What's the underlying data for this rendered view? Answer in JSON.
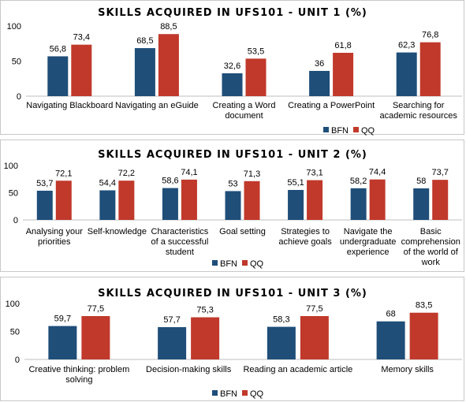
{
  "colors": {
    "bfn": "#1F4E79",
    "qq": "#C0392B",
    "axis": "#bfbfbf"
  },
  "chart_data": [
    {
      "type": "bar",
      "title": "SKILLS ACQUIRED IN UFS101 - UNIT 1 (%)",
      "categories": [
        [
          "Navigating Blackboard"
        ],
        [
          "Navigating an eGuide"
        ],
        [
          "Creating a Word",
          "document"
        ],
        [
          "Creating a PowerPoint"
        ],
        [
          "Searching for",
          "academic resources"
        ]
      ],
      "series": [
        {
          "name": "BFN",
          "values": [
            56.8,
            68.5,
            32.6,
            36,
            62.3
          ],
          "labels": [
            "56,8",
            "68,5",
            "32,6",
            "36",
            "62,3"
          ]
        },
        {
          "name": "QQ",
          "values": [
            73.4,
            88.5,
            53.5,
            61.8,
            76.8
          ],
          "labels": [
            "73,4",
            "88,5",
            "53,5",
            "61,8",
            "76,8"
          ]
        }
      ],
      "yticks": [
        "0",
        "50",
        "100"
      ],
      "ylim": [
        0,
        100
      ],
      "legend": "bottom-right",
      "grid": false
    },
    {
      "type": "bar",
      "title": "SKILLS ACQUIRED IN UFS101 - UNIT 2 (%)",
      "categories": [
        [
          "Analysing your",
          "priorities"
        ],
        [
          "Self-knowledge"
        ],
        [
          "Characteristics",
          "of a successful",
          "student"
        ],
        [
          "Goal setting"
        ],
        [
          "Strategies to",
          "achieve goals"
        ],
        [
          "Navigate the",
          "undergraduate",
          "experience"
        ],
        [
          "Basic",
          "comprehension",
          "of the world of",
          "work"
        ]
      ],
      "series": [
        {
          "name": "BFN",
          "values": [
            53.7,
            54.4,
            58.6,
            53,
            55.1,
            58.2,
            58
          ],
          "labels": [
            "53,7",
            "54,4",
            "58,6",
            "53",
            "55,1",
            "58,2",
            "58"
          ]
        },
        {
          "name": "QQ",
          "values": [
            72.1,
            72.2,
            74.1,
            71.3,
            73.1,
            74.4,
            73.7
          ],
          "labels": [
            "72,1",
            "72,2",
            "74,1",
            "71,3",
            "73,1",
            "74,4",
            "73,7"
          ]
        }
      ],
      "yticks": [
        "0",
        "50",
        "100"
      ],
      "ylim": [
        0,
        100
      ],
      "legend": "bottom-center",
      "grid": false
    },
    {
      "type": "bar",
      "title": "SKILLS ACQUIRED IN UFS101 - UNIT 3 (%)",
      "categories": [
        [
          "Creative thinking: problem",
          "solving"
        ],
        [
          "Decision-making skills"
        ],
        [
          "Reading an academic article"
        ],
        [
          "Memory skills"
        ]
      ],
      "series": [
        {
          "name": "BFN",
          "values": [
            59.7,
            57.7,
            58.3,
            68
          ],
          "labels": [
            "59,7",
            "57,7",
            "58,3",
            "68"
          ]
        },
        {
          "name": "QQ",
          "values": [
            77.5,
            75.3,
            77.5,
            83.5
          ],
          "labels": [
            "77,5",
            "75,3",
            "77,5",
            "83,5"
          ]
        }
      ],
      "yticks": [
        "0",
        "50",
        "100"
      ],
      "ylim": [
        0,
        100
      ],
      "legend": "bottom-center",
      "grid": false
    }
  ]
}
